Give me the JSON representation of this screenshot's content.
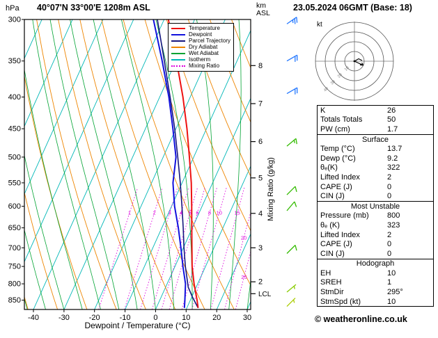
{
  "header": {
    "pressure_unit": "hPa",
    "location": "40°07'N 33°00'E 1208m ASL",
    "km_label": "km",
    "asl_label": "ASL",
    "datetime": "23.05.2024 06GMT (Base: 18)"
  },
  "legend": [
    {
      "label": "Temperature",
      "color": "#ee1111",
      "style": "solid"
    },
    {
      "label": "Dewpoint",
      "color": "#1111dd",
      "style": "solid"
    },
    {
      "label": "Parcel Trajectory",
      "color": "#15157e",
      "style": "solid"
    },
    {
      "label": "Dry Adiabat",
      "color": "#ee8500",
      "style": "solid"
    },
    {
      "label": "Wet Adiabat",
      "color": "#00a332",
      "style": "solid"
    },
    {
      "label": "Isotherm",
      "color": "#00b7b7",
      "style": "solid"
    },
    {
      "label": "Mixing Ratio",
      "color": "#dd00dd",
      "style": "dotted"
    }
  ],
  "hodograph": {
    "unit_label": "kt",
    "ring_labels": [
      "10",
      "20",
      "30",
      "40"
    ]
  },
  "table": {
    "rows_top": [
      {
        "label": "K",
        "value": "26"
      },
      {
        "label": "Totals Totals",
        "value": "50"
      },
      {
        "label": "PW (cm)",
        "value": "1.7"
      }
    ],
    "sections": [
      {
        "title": "Surface",
        "rows": [
          {
            "label": "Temp (°C)",
            "value": "13.7"
          },
          {
            "label": "Dewp (°C)",
            "value": "9.2"
          },
          {
            "label": "θₑ(K)",
            "value": "322"
          },
          {
            "label": "Lifted Index",
            "value": "2"
          },
          {
            "label": "CAPE (J)",
            "value": "0"
          },
          {
            "label": "CIN (J)",
            "value": "0"
          }
        ]
      },
      {
        "title": "Most Unstable",
        "rows": [
          {
            "label": "Pressure (mb)",
            "value": "800"
          },
          {
            "label": "θₑ (K)",
            "value": "323"
          },
          {
            "label": "Lifted Index",
            "value": "2"
          },
          {
            "label": "CAPE (J)",
            "value": "0"
          },
          {
            "label": "CIN (J)",
            "value": "0"
          }
        ]
      },
      {
        "title": "Hodograph",
        "rows": [
          {
            "label": "EH",
            "value": "10"
          },
          {
            "label": "SREH",
            "value": "1"
          },
          {
            "label": "StmDir",
            "value": "295°"
          },
          {
            "label": "StmSpd (kt)",
            "value": "10"
          }
        ]
      }
    ]
  },
  "footer": {
    "copyright": "© weatheronline.co.uk"
  },
  "chart_data": {
    "type": "skewt_log_p_sounding",
    "title": "40°07'N 33°00'E 1208m ASL",
    "valid": "23.05.2024 06GMT (Base: 18)",
    "pressure_axis": {
      "unit": "hPa",
      "top": 300,
      "bottom": 880,
      "ticks": [
        300,
        350,
        400,
        450,
        500,
        550,
        600,
        650,
        700,
        750,
        800,
        850
      ]
    },
    "temperature_axis": {
      "label": "Dewpoint / Temperature (°C)",
      "ticks": [
        -40,
        -30,
        -20,
        -10,
        0,
        10,
        20,
        30
      ]
    },
    "altitude_axis": {
      "unit_top": "km",
      "unit_sub": "ASL",
      "ticks": [
        {
          "km": 8,
          "p": 356
        },
        {
          "km": 7,
          "p": 410
        },
        {
          "km": 6,
          "p": 472
        },
        {
          "km": 5,
          "p": 540
        },
        {
          "km": 4,
          "p": 616
        },
        {
          "km": 3,
          "p": 700
        },
        {
          "km": 2,
          "p": 794
        }
      ],
      "lcl": {
        "label": "LCL",
        "p": 830
      }
    },
    "mixing_ratio_axis": {
      "label": "Mixing Ratio (g/kg)",
      "values": [
        1,
        2,
        3,
        4,
        5,
        6,
        8,
        10,
        15,
        20,
        25
      ]
    },
    "series": {
      "temperature": [
        [
          875,
          13.7
        ],
        [
          850,
          12.2
        ],
        [
          800,
          8.8
        ],
        [
          750,
          5.6
        ],
        [
          700,
          2.8
        ],
        [
          650,
          -0.2
        ],
        [
          600,
          -3.4
        ],
        [
          550,
          -7.0
        ],
        [
          500,
          -11.4
        ],
        [
          450,
          -16.4
        ],
        [
          400,
          -22.4
        ],
        [
          350,
          -29.8
        ],
        [
          300,
          -38.6
        ]
      ],
      "dewpoint": [
        [
          875,
          9.2
        ],
        [
          850,
          8.2
        ],
        [
          800,
          6.0
        ],
        [
          750,
          2.6
        ],
        [
          700,
          -0.8
        ],
        [
          650,
          -4.6
        ],
        [
          600,
          -9.0
        ],
        [
          550,
          -13.0
        ],
        [
          500,
          -15.8
        ],
        [
          450,
          -21.0
        ],
        [
          400,
          -27.0
        ],
        [
          350,
          -34.5
        ],
        [
          300,
          -43.5
        ]
      ],
      "parcel_trajectory": [
        [
          875,
          13.7
        ],
        [
          840,
          10.2
        ],
        [
          810,
          7.4
        ],
        [
          750,
          3.4
        ],
        [
          700,
          0.2
        ],
        [
          650,
          -3.0
        ],
        [
          600,
          -6.6
        ],
        [
          550,
          -10.6
        ],
        [
          500,
          -15.2
        ],
        [
          450,
          -20.4
        ],
        [
          400,
          -26.6
        ],
        [
          350,
          -33.8
        ],
        [
          300,
          -42.2
        ]
      ]
    },
    "wind_barbs": [
      {
        "p": 305,
        "spd": 25,
        "dir": 55,
        "color": "#2277ff"
      },
      {
        "p": 350,
        "spd": 20,
        "dir": 60,
        "color": "#2277ff"
      },
      {
        "p": 395,
        "spd": 20,
        "dir": 60,
        "color": "#2277ff"
      },
      {
        "p": 480,
        "spd": 15,
        "dir": 50,
        "color": "#33bb00"
      },
      {
        "p": 575,
        "spd": 10,
        "dir": 45,
        "color": "#33bb00"
      },
      {
        "p": 610,
        "spd": 10,
        "dir": 40,
        "color": "#33bb00"
      },
      {
        "p": 715,
        "spd": 10,
        "dir": 45,
        "color": "#33bb00"
      },
      {
        "p": 825,
        "spd": 5,
        "dir": 50,
        "color": "#88cc00"
      },
      {
        "p": 870,
        "spd": 5,
        "dir": 45,
        "color": "#aacc00"
      }
    ]
  }
}
